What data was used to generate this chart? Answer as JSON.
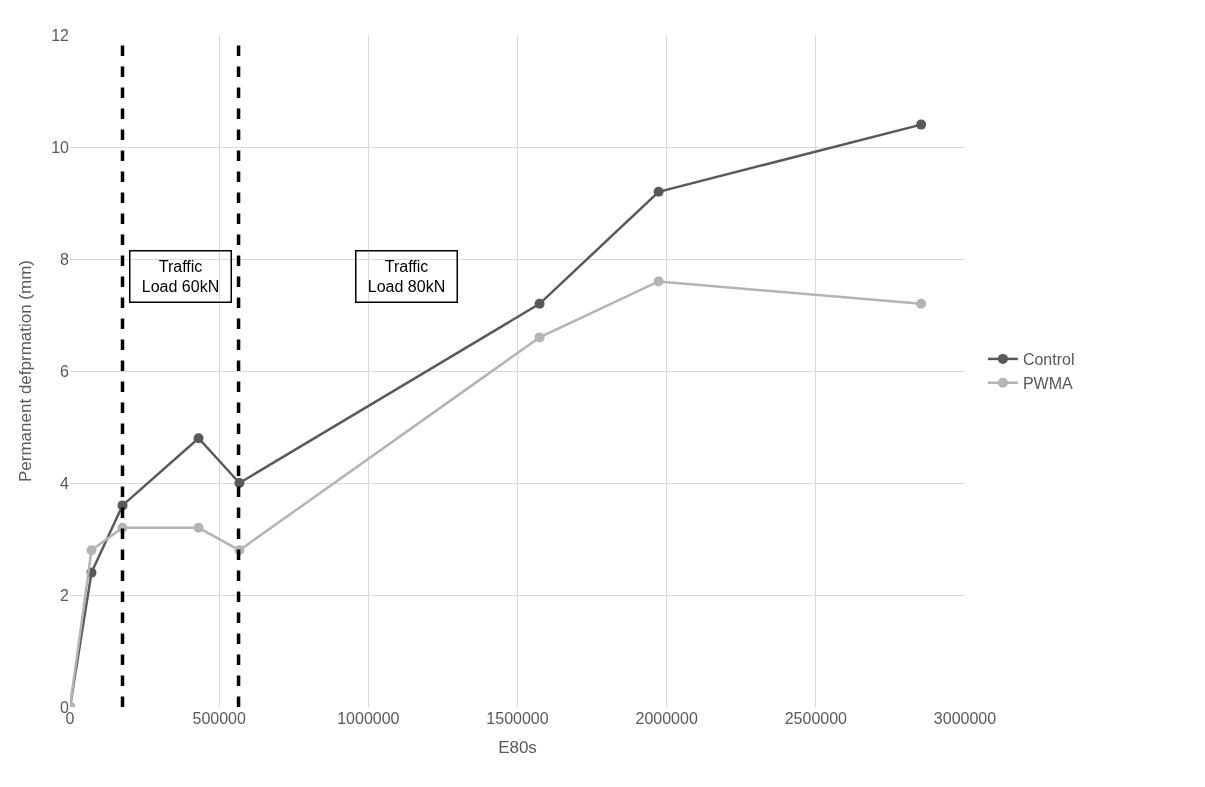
{
  "chart_data": {
    "type": "line",
    "xlabel": "E80s",
    "ylabel": "Permanent defprmation (mm)",
    "x": [
      0,
      72000,
      176000,
      431000,
      568000,
      1574000,
      1973000,
      2853000
    ],
    "series": [
      {
        "name": "Control",
        "color": "#595959",
        "values": [
          0,
          2.4,
          3.6,
          4.8,
          4.0,
          7.2,
          9.2,
          10.4
        ]
      },
      {
        "name": "PWMA",
        "color": "#b4b4b4",
        "values": [
          0,
          2.8,
          3.2,
          3.2,
          2.8,
          6.6,
          7.6,
          7.2
        ]
      }
    ],
    "xlim": [
      0,
      3000000
    ],
    "xticks": [
      0,
      500000,
      1000000,
      1500000,
      2000000,
      2500000,
      3000000
    ],
    "ylim": [
      0,
      12
    ],
    "yticks": [
      0,
      2,
      4,
      6,
      8,
      10,
      12
    ],
    "ref_lines": [
      {
        "axis": "x",
        "value": 176000,
        "color": "#000000",
        "line_style": "dashed"
      },
      {
        "axis": "x",
        "value": 565000,
        "color": "#000000",
        "line_style": "dashed"
      }
    ],
    "annotations": [
      "Traffic\nLoad 60kN",
      "Traffic\nLoad 80kN"
    ],
    "grid": true,
    "legend": "right",
    "marker": "circle",
    "line_style": "solid"
  }
}
